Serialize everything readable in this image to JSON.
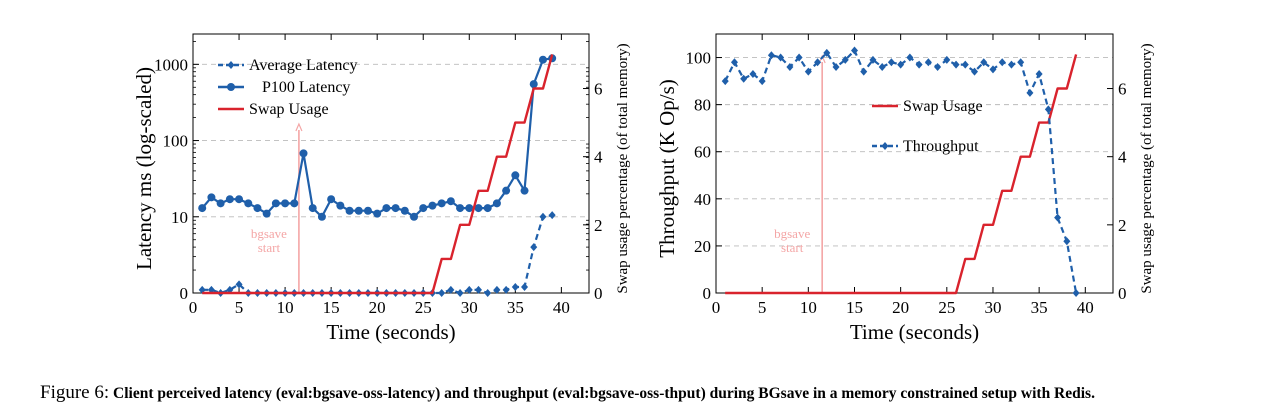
{
  "caption": {
    "label": "Figure 6:",
    "text": "Client perceived latency (eval:bgsave-oss-latency) and throughput (eval:bgsave-oss-thput) during BGsave in a memory constrained setup with Redis."
  },
  "chart_data": [
    {
      "type": "line",
      "xlabel": "Time (seconds)",
      "ylabel": "Latency ms (log-scaled)",
      "y2label": "Swap usage percentage (of total memory)",
      "xlim": [
        0,
        43
      ],
      "xticks": [
        0,
        5,
        10,
        15,
        20,
        25,
        30,
        35,
        40
      ],
      "yscale": "log",
      "ylim": [
        1,
        2500
      ],
      "ytick_values": [
        1,
        10,
        100,
        1000
      ],
      "ytick_labels": [
        "0",
        "10",
        "100",
        "1000"
      ],
      "y2lim": [
        0,
        7.6
      ],
      "y2ticks": [
        0,
        2,
        4,
        6
      ],
      "grid": "horizontal dashed",
      "legend_position": "top-left",
      "series": [
        {
          "name": "Average Latency",
          "axis": "left",
          "style": "dashed",
          "marker": "diamond",
          "color": "#1f5faa",
          "x": [
            1,
            2,
            3,
            4,
            5,
            6,
            7,
            8,
            9,
            10,
            11,
            12,
            13,
            14,
            15,
            16,
            17,
            18,
            19,
            20,
            21,
            22,
            23,
            24,
            25,
            26,
            27,
            28,
            29,
            30,
            31,
            32,
            33,
            34,
            35,
            36,
            37,
            38,
            39
          ],
          "values": [
            1.1,
            1.1,
            1.0,
            1.1,
            1.3,
            1.0,
            1.0,
            1.0,
            1.0,
            1.0,
            1.0,
            1.0,
            1.0,
            1.0,
            1.0,
            1.0,
            1.0,
            1.0,
            1.0,
            1.0,
            1.0,
            1.0,
            1.0,
            1.0,
            1.0,
            1.0,
            1.0,
            1.1,
            1.0,
            1.1,
            1.1,
            1.0,
            1.1,
            1.1,
            1.2,
            1.2,
            4.0,
            10.0,
            10.5
          ]
        },
        {
          "name": "P100 Latency",
          "axis": "left",
          "style": "solid",
          "marker": "circle",
          "color": "#1f5faa",
          "x": [
            1,
            2,
            3,
            4,
            5,
            6,
            7,
            8,
            9,
            10,
            11,
            12,
            13,
            14,
            15,
            16,
            17,
            18,
            19,
            20,
            21,
            22,
            23,
            24,
            25,
            26,
            27,
            28,
            29,
            30,
            31,
            32,
            33,
            34,
            35,
            36,
            37,
            38,
            39
          ],
          "values": [
            13,
            18,
            15,
            17,
            17,
            15,
            13,
            11,
            15,
            15,
            15,
            68,
            13,
            10,
            17,
            14,
            12,
            12,
            12,
            11,
            13,
            13,
            12,
            10,
            13,
            14,
            15,
            16,
            13,
            13,
            13,
            13,
            15,
            22,
            35,
            22,
            550,
            1150,
            1200
          ]
        },
        {
          "name": "Swap Usage",
          "axis": "right",
          "style": "solid",
          "color": "#d9232d",
          "x": [
            1,
            26,
            27,
            28,
            29,
            30,
            31,
            32,
            33,
            34,
            35,
            36,
            37,
            38,
            39
          ],
          "values": [
            0,
            0,
            1.0,
            1.0,
            2.0,
            2.0,
            3.0,
            3.0,
            4.0,
            4.0,
            5.0,
            5.0,
            6.0,
            6.0,
            7.0
          ]
        }
      ],
      "annotations": [
        {
          "text": [
            "bgsave",
            "start"
          ],
          "x": 11.5,
          "color": "#f4a6a6"
        }
      ]
    },
    {
      "type": "line",
      "xlabel": "Time (seconds)",
      "ylabel": "Throughput (K Op/s)",
      "y2label": "Swap usage percentage (of total memory)",
      "xlim": [
        0,
        43
      ],
      "xticks": [
        0,
        5,
        10,
        15,
        20,
        25,
        30,
        35,
        40
      ],
      "ylim": [
        0,
        110
      ],
      "yticks": [
        0,
        20,
        40,
        60,
        80,
        100
      ],
      "y2lim": [
        0,
        7.6
      ],
      "y2ticks": [
        0,
        2,
        4,
        6
      ],
      "grid": "horizontal dashed",
      "legend_position": "center-right",
      "series": [
        {
          "name": "Swap Usage",
          "axis": "right",
          "style": "solid",
          "color": "#d9232d",
          "x": [
            1,
            26,
            27,
            28,
            29,
            30,
            31,
            32,
            33,
            34,
            35,
            36,
            37,
            38,
            39
          ],
          "values": [
            0,
            0,
            1.0,
            1.0,
            2.0,
            2.0,
            3.0,
            3.0,
            4.0,
            4.0,
            5.0,
            5.0,
            6.0,
            6.0,
            7.0
          ]
        },
        {
          "name": "Throughput",
          "axis": "left",
          "style": "dashed",
          "marker": "diamond",
          "color": "#1f5faa",
          "x": [
            1,
            2,
            3,
            4,
            5,
            6,
            7,
            8,
            9,
            10,
            11,
            12,
            13,
            14,
            15,
            16,
            17,
            18,
            19,
            20,
            21,
            22,
            23,
            24,
            25,
            26,
            27,
            28,
            29,
            30,
            31,
            32,
            33,
            34,
            35,
            36,
            37,
            38,
            39
          ],
          "values": [
            90,
            98,
            91,
            93,
            90,
            101,
            100,
            96,
            100,
            94,
            98,
            102,
            96,
            99,
            103,
            94,
            99,
            96,
            98,
            97,
            100,
            97,
            98,
            96,
            99,
            97,
            97,
            94,
            98,
            95,
            98,
            97,
            98,
            85,
            93,
            78,
            32,
            22,
            0
          ]
        }
      ],
      "annotations": [
        {
          "text": [
            "bgsave",
            "start"
          ],
          "x": 11.5,
          "color": "#f4a6a6"
        }
      ]
    }
  ]
}
